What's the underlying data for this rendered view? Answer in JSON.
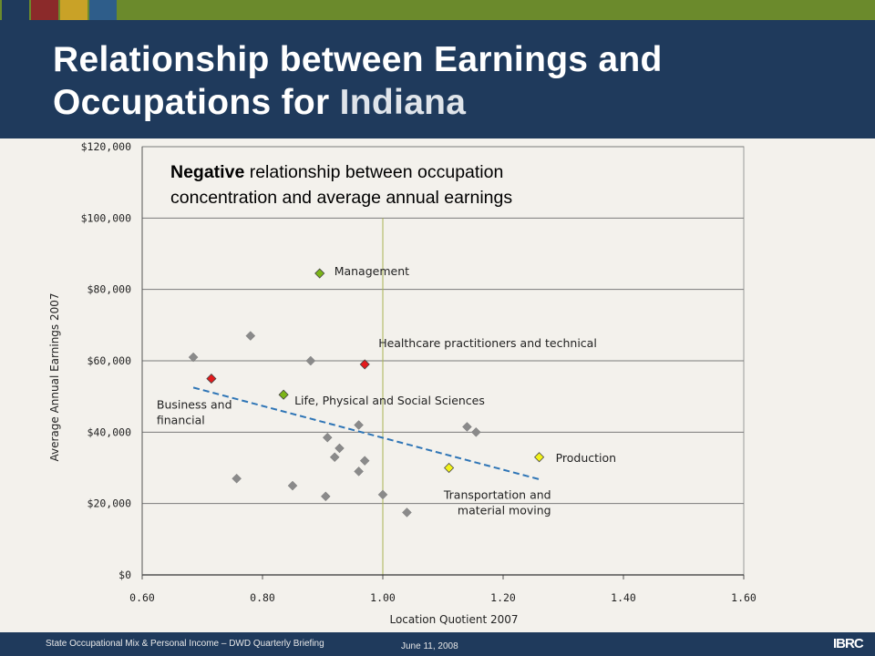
{
  "slide": {
    "title_part1": "Relationship between Earnings and Occupations for ",
    "title_highlight": "Indiana",
    "footer_left": "State Occupational Mix & Personal Income – DWD Quarterly Briefing",
    "footer_date": "June 11, 2008",
    "logo_text": "IBRC",
    "colors": {
      "header": "#1f3a5c",
      "strip": "#6b8a2c",
      "strip_squares": [
        "#1f3a5c",
        "#8b2a2a",
        "#c9a227",
        "#2e5d8a"
      ]
    }
  },
  "chart_data": {
    "type": "scatter",
    "xlabel": "Location Quotient 2007",
    "ylabel": "Average Annual Earnings 2007",
    "xlim": [
      0.6,
      1.6
    ],
    "ylim": [
      0,
      120000
    ],
    "x_ticks": [
      "0.60",
      "0.80",
      "1.00",
      "1.20",
      "1.40",
      "1.60"
    ],
    "y_ticks": [
      "$0",
      "$20,000",
      "$40,000",
      "$60,000",
      "$80,000",
      "$100,000",
      "$120,000"
    ],
    "grid": "horizontal",
    "reference_line_x": 1.0,
    "annotation": {
      "bold": "Negative",
      "line1_rest": " relationship between occupation",
      "line2": "concentration and average annual earnings"
    },
    "trendline": {
      "x": [
        0.685,
        1.26
      ],
      "y": [
        52500,
        26800
      ],
      "style": "dashed",
      "color": "#2e75b6"
    },
    "points": [
      {
        "x": 0.685,
        "y": 61000,
        "color": "#8a8a8a"
      },
      {
        "x": 0.715,
        "y": 55000,
        "color": "#e31a1c",
        "label_lines": [
          "Business and",
          "financial"
        ]
      },
      {
        "x": 0.757,
        "y": 27000,
        "color": "#8a8a8a"
      },
      {
        "x": 0.78,
        "y": 67000,
        "color": "#8a8a8a"
      },
      {
        "x": 0.835,
        "y": 50500,
        "color": "#7cb518",
        "label_lines": [
          "Life, Physical and Social Sciences"
        ]
      },
      {
        "x": 0.85,
        "y": 25000,
        "color": "#8a8a8a"
      },
      {
        "x": 0.88,
        "y": 60000,
        "color": "#8a8a8a"
      },
      {
        "x": 0.895,
        "y": 84500,
        "color": "#7cb518",
        "label_lines": [
          "Management"
        ]
      },
      {
        "x": 0.905,
        "y": 22000,
        "color": "#8a8a8a"
      },
      {
        "x": 0.908,
        "y": 38500,
        "color": "#8a8a8a"
      },
      {
        "x": 0.92,
        "y": 33000,
        "color": "#8a8a8a"
      },
      {
        "x": 0.928,
        "y": 35500,
        "color": "#8a8a8a"
      },
      {
        "x": 0.96,
        "y": 29000,
        "color": "#8a8a8a"
      },
      {
        "x": 0.96,
        "y": 42000,
        "color": "#8a8a8a"
      },
      {
        "x": 0.97,
        "y": 32000,
        "color": "#8a8a8a"
      },
      {
        "x": 0.97,
        "y": 59000,
        "color": "#e31a1c",
        "label_lines": [
          "Healthcare practitioners and technical"
        ]
      },
      {
        "x": 1.0,
        "y": 22500,
        "color": "#8a8a8a"
      },
      {
        "x": 1.04,
        "y": 17500,
        "color": "#8a8a8a"
      },
      {
        "x": 1.11,
        "y": 30000,
        "color": "#f2f21a",
        "label_lines": [
          "Transportation and",
          "material moving"
        ]
      },
      {
        "x": 1.14,
        "y": 41500,
        "color": "#8a8a8a"
      },
      {
        "x": 1.155,
        "y": 40000,
        "color": "#8a8a8a"
      },
      {
        "x": 1.26,
        "y": 33000,
        "color": "#f2f21a",
        "label_lines": [
          "Production"
        ]
      }
    ]
  }
}
